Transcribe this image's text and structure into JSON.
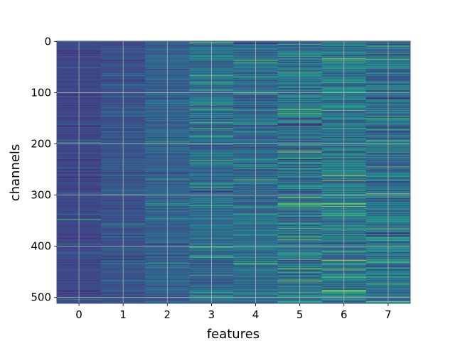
{
  "chart_data": {
    "type": "heatmap",
    "title": "",
    "xlabel": "features",
    "ylabel": "channels",
    "x": [
      0,
      1,
      2,
      3,
      4,
      5,
      6,
      7
    ],
    "y_range": [
      0,
      511
    ],
    "ylim": [
      511,
      0
    ],
    "y_inverted": true,
    "x_ticks": [
      "0",
      "1",
      "2",
      "3",
      "4",
      "5",
      "6",
      "7"
    ],
    "y_ticks": [
      0,
      100,
      200,
      300,
      400,
      500
    ],
    "y_tick_labels": [
      "0",
      "100",
      "200",
      "300",
      "400",
      "500"
    ],
    "grid": true,
    "colormap": "viridis",
    "background_color": "#3b528b",
    "column_mean_level": [
      0.22,
      0.26,
      0.32,
      0.36,
      0.36,
      0.38,
      0.4,
      0.38
    ],
    "column_variation": [
      0.04,
      0.06,
      0.1,
      0.14,
      0.16,
      0.22,
      0.2,
      0.2
    ],
    "bright_cells": [
      {
        "feature": 0,
        "channel": 348,
        "value": 0.7
      },
      {
        "feature": 5,
        "channel": 400,
        "value": 0.92
      },
      {
        "feature": 5,
        "channel": 403,
        "value": 0.55
      },
      {
        "feature": 5,
        "channel": 490,
        "value": 0.72
      },
      {
        "feature": 6,
        "channel": 262,
        "value": 1.0
      },
      {
        "feature": 6,
        "channel": 214,
        "value": 0.6
      },
      {
        "feature": 6,
        "channel": 222,
        "value": 0.62
      },
      {
        "feature": 7,
        "channel": 8,
        "value": 0.62
      },
      {
        "feature": 7,
        "channel": 472,
        "value": 0.7
      },
      {
        "feature": 7,
        "channel": 352,
        "value": 0.65
      },
      {
        "feature": 4,
        "channel": 4,
        "value": 0.08
      },
      {
        "feature": 5,
        "channel": 210,
        "value": 0.04
      }
    ]
  }
}
